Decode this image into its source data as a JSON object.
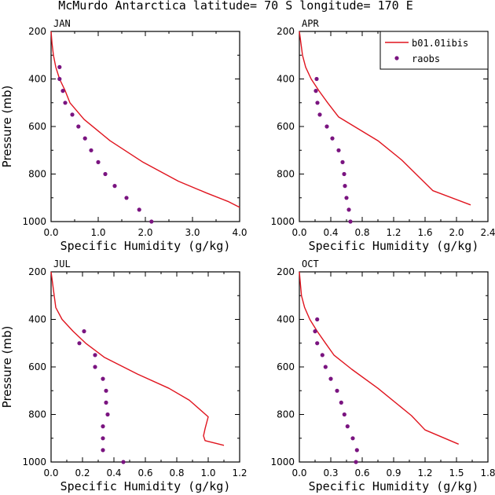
{
  "title": "McMurdo Antarctica  latitude= 70 S longitude= 170 E",
  "legend": {
    "model_label": "b01.01ibis",
    "obs_label": "raobs"
  },
  "colors": {
    "model": "#e0141e",
    "obs": "#7a1480"
  },
  "chart_data": [
    {
      "type": "line",
      "panel": "JAN",
      "xlabel": "Specific Humidity (g/kg)",
      "ylabel": "Pressure (mb)",
      "xlim": [
        0,
        4.0
      ],
      "ylim": [
        1000,
        200
      ],
      "y_reversed": true,
      "x_ticks": [
        "0.0",
        "1.0",
        "2.0",
        "3.0",
        "4.0"
      ],
      "x_tick_values": [
        0,
        1,
        2,
        3,
        4
      ],
      "y_ticks": [
        "200",
        "400",
        "600",
        "800",
        "1000"
      ],
      "y_tick_values": [
        200,
        400,
        600,
        800,
        1000
      ],
      "series": [
        {
          "name": "b01.01ibis",
          "kind": "line",
          "points": [
            [
              0.0,
              200
            ],
            [
              0.02,
              250
            ],
            [
              0.05,
              300
            ],
            [
              0.1,
              350
            ],
            [
              0.18,
              400
            ],
            [
              0.3,
              450
            ],
            [
              0.4,
              500
            ],
            [
              0.7,
              570
            ],
            [
              1.25,
              660
            ],
            [
              1.95,
              750
            ],
            [
              2.7,
              830
            ],
            [
              3.3,
              880
            ],
            [
              3.75,
              915
            ],
            [
              4.0,
              940
            ]
          ]
        },
        {
          "name": "raobs",
          "kind": "scatter",
          "points": [
            [
              0.18,
              350
            ],
            [
              0.18,
              400
            ],
            [
              0.25,
              450
            ],
            [
              0.3,
              500
            ],
            [
              0.45,
              550
            ],
            [
              0.58,
              600
            ],
            [
              0.72,
              650
            ],
            [
              0.85,
              700
            ],
            [
              1.0,
              750
            ],
            [
              1.15,
              800
            ],
            [
              1.35,
              850
            ],
            [
              1.6,
              900
            ],
            [
              1.87,
              950
            ],
            [
              2.13,
              1000
            ]
          ]
        }
      ]
    },
    {
      "type": "line",
      "panel": "APR",
      "xlabel": "Specific Humidity (g/kg)",
      "ylabel": "",
      "xlim": [
        0,
        2.4
      ],
      "ylim": [
        1000,
        200
      ],
      "y_reversed": true,
      "x_ticks": [
        "0.0",
        "0.4",
        "0.8",
        "1.2",
        "1.6",
        "2.0",
        "2.4"
      ],
      "x_tick_values": [
        0,
        0.4,
        0.8,
        1.2,
        1.6,
        2.0,
        2.4
      ],
      "y_ticks": [
        "200",
        "400",
        "600",
        "800",
        "1000"
      ],
      "y_tick_values": [
        200,
        400,
        600,
        800,
        1000
      ],
      "series": [
        {
          "name": "b01.01ibis",
          "kind": "line",
          "points": [
            [
              0.0,
              200
            ],
            [
              0.02,
              250
            ],
            [
              0.04,
              300
            ],
            [
              0.08,
              350
            ],
            [
              0.15,
              400
            ],
            [
              0.25,
              450
            ],
            [
              0.36,
              500
            ],
            [
              0.5,
              560
            ],
            [
              0.75,
              610
            ],
            [
              1.0,
              660
            ],
            [
              1.3,
              740
            ],
            [
              1.7,
              870
            ],
            [
              2.18,
              930
            ]
          ]
        },
        {
          "name": "raobs",
          "kind": "scatter",
          "points": [
            [
              0.22,
              400
            ],
            [
              0.21,
              450
            ],
            [
              0.23,
              500
            ],
            [
              0.26,
              550
            ],
            [
              0.35,
              600
            ],
            [
              0.42,
              650
            ],
            [
              0.5,
              700
            ],
            [
              0.55,
              750
            ],
            [
              0.57,
              800
            ],
            [
              0.58,
              850
            ],
            [
              0.6,
              900
            ],
            [
              0.63,
              950
            ],
            [
              0.65,
              1000
            ]
          ]
        }
      ]
    },
    {
      "type": "line",
      "panel": "JUL",
      "xlabel": "Specific Humidity (g/kg)",
      "ylabel": "Pressure (mb)",
      "xlim": [
        0,
        1.2
      ],
      "ylim": [
        1000,
        200
      ],
      "y_reversed": true,
      "x_ticks": [
        "0.0",
        "0.2",
        "0.4",
        "0.6",
        "0.8",
        "1.0",
        "1.2"
      ],
      "x_tick_values": [
        0,
        0.2,
        0.4,
        0.6,
        0.8,
        1.0,
        1.2
      ],
      "y_ticks": [
        "200",
        "400",
        "600",
        "800",
        "1000"
      ],
      "y_tick_values": [
        200,
        400,
        600,
        800,
        1000
      ],
      "series": [
        {
          "name": "b01.01ibis",
          "kind": "line",
          "points": [
            [
              0.0,
              200
            ],
            [
              0.01,
              250
            ],
            [
              0.02,
              300
            ],
            [
              0.03,
              350
            ],
            [
              0.07,
              400
            ],
            [
              0.14,
              450
            ],
            [
              0.22,
              500
            ],
            [
              0.34,
              560
            ],
            [
              0.55,
              630
            ],
            [
              0.75,
              690
            ],
            [
              0.88,
              740
            ],
            [
              1.0,
              810
            ],
            [
              0.98,
              860
            ],
            [
              0.97,
              890
            ],
            [
              0.98,
              910
            ],
            [
              1.1,
              930
            ]
          ]
        },
        {
          "name": "raobs",
          "kind": "scatter",
          "points": [
            [
              0.21,
              450
            ],
            [
              0.18,
              500
            ],
            [
              0.28,
              550
            ],
            [
              0.28,
              600
            ],
            [
              0.33,
              650
            ],
            [
              0.35,
              700
            ],
            [
              0.35,
              750
            ],
            [
              0.36,
              800
            ],
            [
              0.33,
              850
            ],
            [
              0.33,
              900
            ],
            [
              0.33,
              950
            ],
            [
              0.46,
              1000
            ]
          ]
        }
      ]
    },
    {
      "type": "line",
      "panel": "OCT",
      "xlabel": "Specific Humidity (g/kg)",
      "ylabel": "",
      "xlim": [
        0,
        1.8
      ],
      "ylim": [
        1000,
        200
      ],
      "y_reversed": true,
      "x_ticks": [
        "0.0",
        "0.3",
        "0.6",
        "0.9",
        "1.2",
        "1.5",
        "1.8"
      ],
      "x_tick_values": [
        0,
        0.3,
        0.6,
        0.9,
        1.2,
        1.5,
        1.8
      ],
      "y_ticks": [
        "200",
        "400",
        "600",
        "800",
        "1000"
      ],
      "y_tick_values": [
        200,
        400,
        600,
        800,
        1000
      ],
      "series": [
        {
          "name": "b01.01ibis",
          "kind": "line",
          "points": [
            [
              0.0,
              200
            ],
            [
              0.01,
              250
            ],
            [
              0.02,
              300
            ],
            [
              0.05,
              350
            ],
            [
              0.1,
              400
            ],
            [
              0.17,
              450
            ],
            [
              0.25,
              500
            ],
            [
              0.33,
              550
            ],
            [
              0.5,
              610
            ],
            [
              0.75,
              690
            ],
            [
              1.07,
              805
            ],
            [
              1.2,
              865
            ],
            [
              1.52,
              925
            ]
          ]
        },
        {
          "name": "raobs",
          "kind": "scatter",
          "points": [
            [
              0.17,
              400
            ],
            [
              0.15,
              450
            ],
            [
              0.17,
              500
            ],
            [
              0.22,
              550
            ],
            [
              0.25,
              600
            ],
            [
              0.3,
              650
            ],
            [
              0.36,
              700
            ],
            [
              0.4,
              750
            ],
            [
              0.43,
              800
            ],
            [
              0.46,
              850
            ],
            [
              0.51,
              900
            ],
            [
              0.55,
              950
            ],
            [
              0.54,
              1000
            ]
          ]
        }
      ]
    }
  ]
}
